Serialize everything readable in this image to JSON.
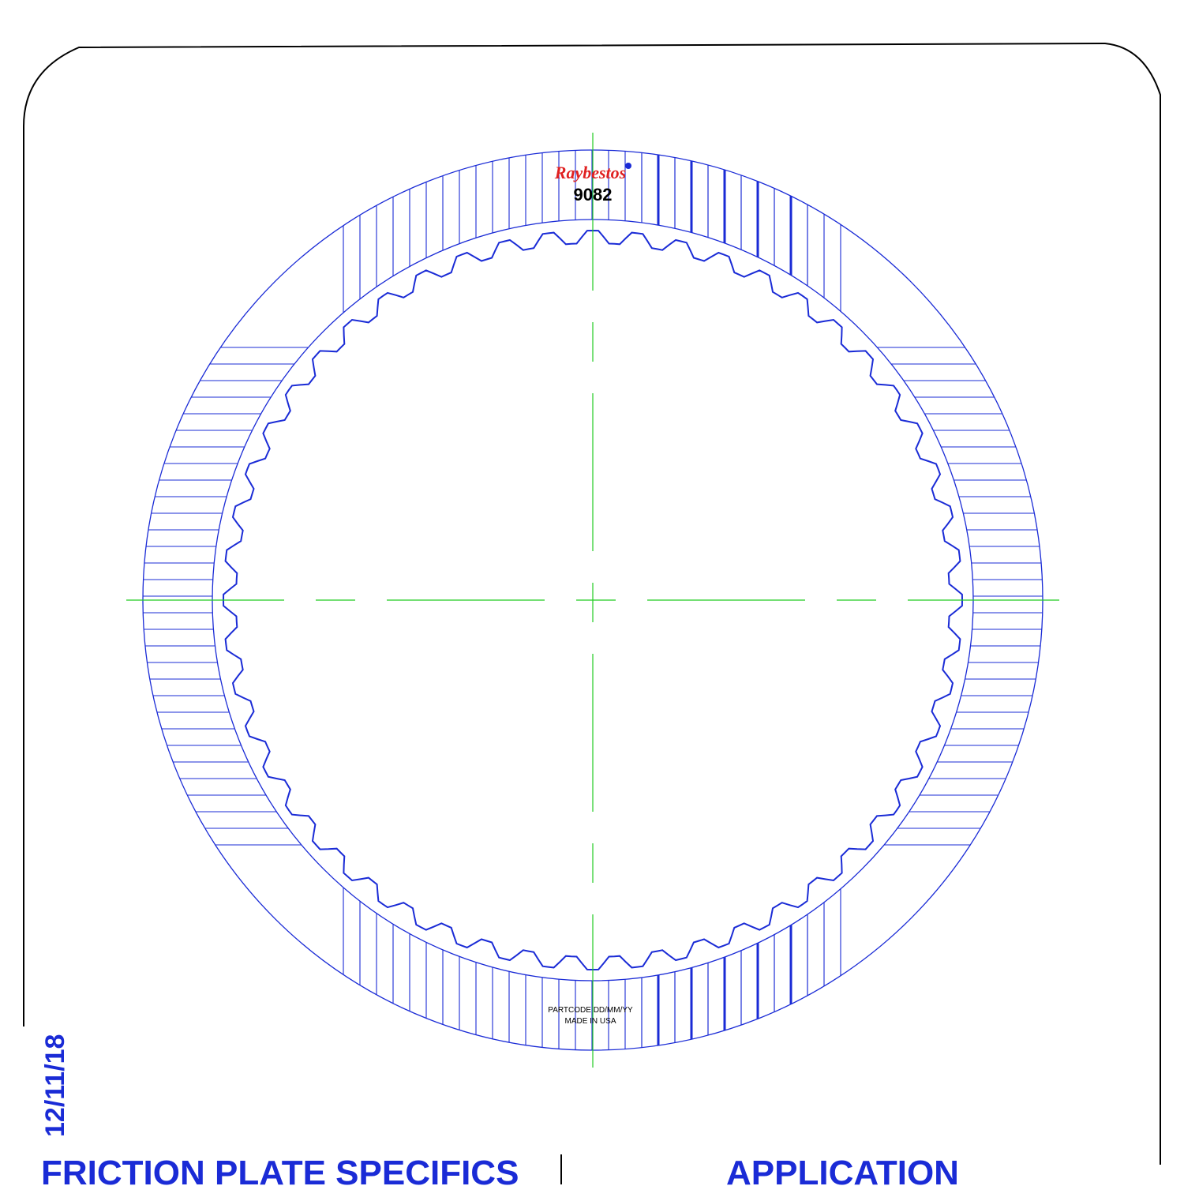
{
  "drawing": {
    "brand_logo_text": "Raybestos",
    "part_number": "9082",
    "marking_line1": "PARTCODE DD/MM/YY",
    "marking_line2": "MADE IN USA",
    "date": "12/11/18",
    "footer": {
      "specs_title": "FRICTION PLATE SPECIFICS",
      "application_title": "APPLICATION"
    },
    "plate": {
      "internal_teeth": 52
    },
    "colors": {
      "outline": "#1a2bd6",
      "centerline": "#22cc22",
      "frame": "#000000",
      "logo": "#e02020"
    }
  }
}
